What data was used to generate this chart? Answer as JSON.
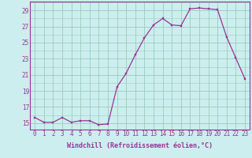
{
  "x": [
    0,
    1,
    2,
    3,
    4,
    5,
    6,
    7,
    8,
    9,
    10,
    11,
    12,
    13,
    14,
    15,
    16,
    17,
    18,
    19,
    20,
    21,
    22,
    23
  ],
  "y": [
    15.7,
    15.1,
    15.1,
    15.7,
    15.1,
    15.3,
    15.3,
    14.8,
    14.9,
    19.5,
    21.2,
    23.5,
    25.6,
    27.2,
    28.0,
    27.2,
    27.1,
    29.2,
    29.3,
    29.2,
    29.1,
    25.7,
    23.1,
    20.5
  ],
  "line_color": "#993399",
  "marker_color": "#993399",
  "bg_color": "#cceeee",
  "grid_color": "#99ccbb",
  "xlabel": "Windchill (Refroidissement éolien,°C)",
  "ylabel_ticks": [
    15,
    17,
    19,
    21,
    23,
    25,
    27,
    29
  ],
  "ylim": [
    14.2,
    30.1
  ],
  "xlim": [
    -0.5,
    23.5
  ],
  "xticks": [
    0,
    1,
    2,
    3,
    4,
    5,
    6,
    7,
    8,
    9,
    10,
    11,
    12,
    13,
    14,
    15,
    16,
    17,
    18,
    19,
    20,
    21,
    22,
    23
  ],
  "tick_fontsize": 5.5,
  "label_fontsize": 6.0,
  "marker_size": 2.0,
  "line_width": 0.9
}
